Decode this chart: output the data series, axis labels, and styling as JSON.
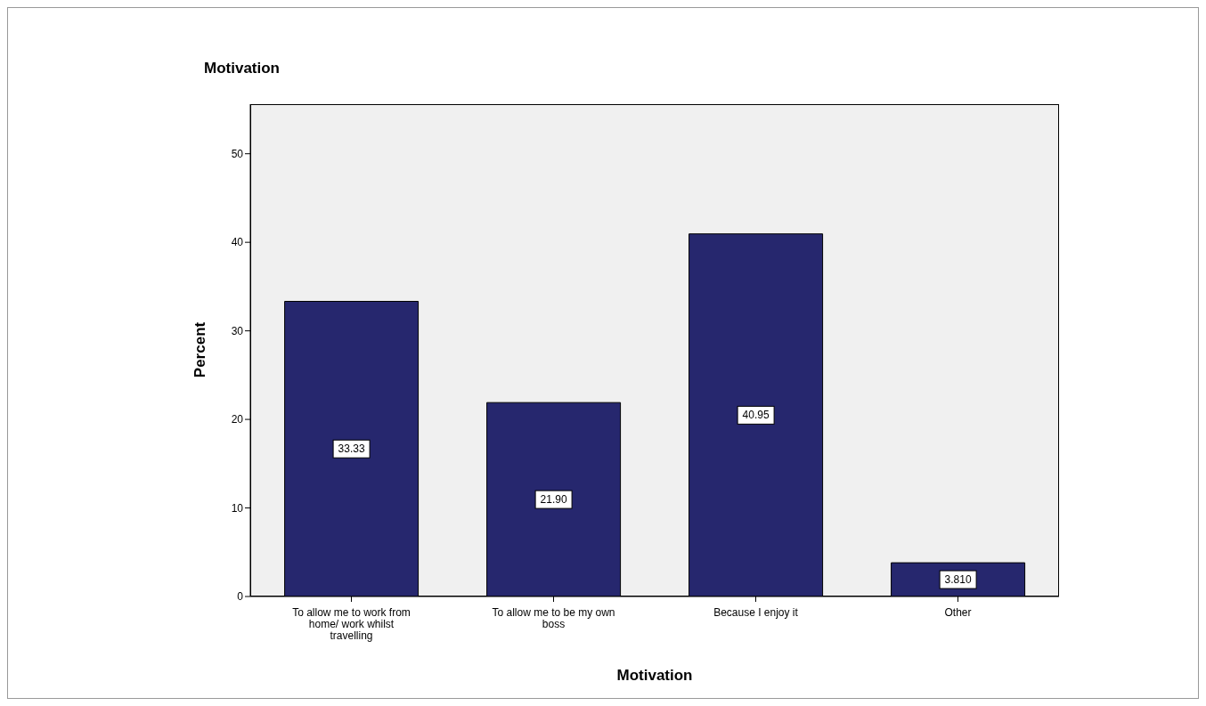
{
  "chart_data": {
    "type": "bar",
    "title": "Motivation",
    "xlabel": "Motivation",
    "ylabel": "Percent",
    "categories": [
      "To allow me to work from home/ work whilst travelling",
      "To allow me to be my own boss",
      "Because I enjoy it",
      "Other"
    ],
    "values": [
      33.33,
      21.9,
      40.95,
      3.81
    ],
    "value_labels": [
      "33.33",
      "21.90",
      "40.95",
      "3.810"
    ],
    "color": "#26276e",
    "ylim": [
      0,
      55.6
    ],
    "yticks": [
      0,
      10,
      20,
      30,
      40,
      50
    ],
    "grid": false
  }
}
